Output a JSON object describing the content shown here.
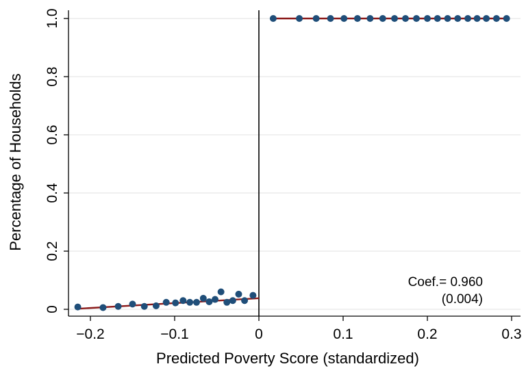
{
  "chart_data": {
    "type": "scatter",
    "title": "",
    "xlabel": "Predicted Poverty Score (standardized)",
    "ylabel": "Percentage of Households",
    "xlim": [
      -0.22,
      0.3
    ],
    "ylim": [
      0,
      1.0
    ],
    "grid": true,
    "cutoff_x": 0,
    "x_ticks": [
      {
        "value": -0.2,
        "label": "−0.2"
      },
      {
        "value": -0.1,
        "label": "−0.1"
      },
      {
        "value": 0,
        "label": "0"
      },
      {
        "value": 0.1,
        "label": "0.1"
      },
      {
        "value": 0.2,
        "label": "0.2"
      },
      {
        "value": 0.3,
        "label": "0.3"
      }
    ],
    "y_ticks": [
      {
        "value": 0,
        "label": "0"
      },
      {
        "value": 0.2,
        "label": "0.2"
      },
      {
        "value": 0.4,
        "label": "0.4"
      },
      {
        "value": 0.6,
        "label": "0.6"
      },
      {
        "value": 0.8,
        "label": "0.8"
      },
      {
        "value": 1.0,
        "label": "1.0"
      }
    ],
    "series": [
      {
        "type": "scatter",
        "color": "#1f4e79",
        "points": [
          [
            -0.215,
            0.008
          ],
          [
            -0.185,
            0.006
          ],
          [
            -0.167,
            0.01
          ],
          [
            -0.15,
            0.018
          ],
          [
            -0.136,
            0.01
          ],
          [
            -0.122,
            0.012
          ],
          [
            -0.11,
            0.024
          ],
          [
            -0.099,
            0.022
          ],
          [
            -0.09,
            0.03
          ],
          [
            -0.082,
            0.024
          ],
          [
            -0.074,
            0.024
          ],
          [
            -0.066,
            0.038
          ],
          [
            -0.059,
            0.026
          ],
          [
            -0.052,
            0.034
          ],
          [
            -0.045,
            0.06
          ],
          [
            -0.038,
            0.024
          ],
          [
            -0.031,
            0.03
          ],
          [
            -0.024,
            0.052
          ],
          [
            -0.017,
            0.03
          ],
          [
            -0.007,
            0.048
          ],
          [
            0.017,
            1.0
          ],
          [
            0.048,
            1.0
          ],
          [
            0.068,
            1.0
          ],
          [
            0.085,
            1.0
          ],
          [
            0.101,
            1.0
          ],
          [
            0.117,
            1.0
          ],
          [
            0.132,
            1.0
          ],
          [
            0.147,
            1.0
          ],
          [
            0.161,
            1.0
          ],
          [
            0.174,
            1.0
          ],
          [
            0.187,
            1.0
          ],
          [
            0.2,
            1.0
          ],
          [
            0.212,
            1.0
          ],
          [
            0.224,
            1.0
          ],
          [
            0.236,
            1.0
          ],
          [
            0.248,
            1.0
          ],
          [
            0.259,
            1.0
          ],
          [
            0.27,
            1.0
          ],
          [
            0.282,
            1.0
          ],
          [
            0.294,
            1.0
          ]
        ]
      },
      {
        "type": "line",
        "color": "#8b1a1a",
        "points": [
          [
            -0.215,
            0.002
          ],
          [
            0,
            0.038
          ]
        ]
      },
      {
        "type": "line",
        "color": "#8b1a1a",
        "points": [
          [
            0.017,
            1.0
          ],
          [
            0.294,
            1.0
          ]
        ]
      }
    ],
    "annotation": {
      "line1": "Coef.= 0.960",
      "line2": "(0.004)"
    },
    "colors": {
      "points": "#1f4e79",
      "fit_line": "#8b1a1a",
      "grid": "#e6e6e6",
      "axis": "#000000"
    }
  }
}
